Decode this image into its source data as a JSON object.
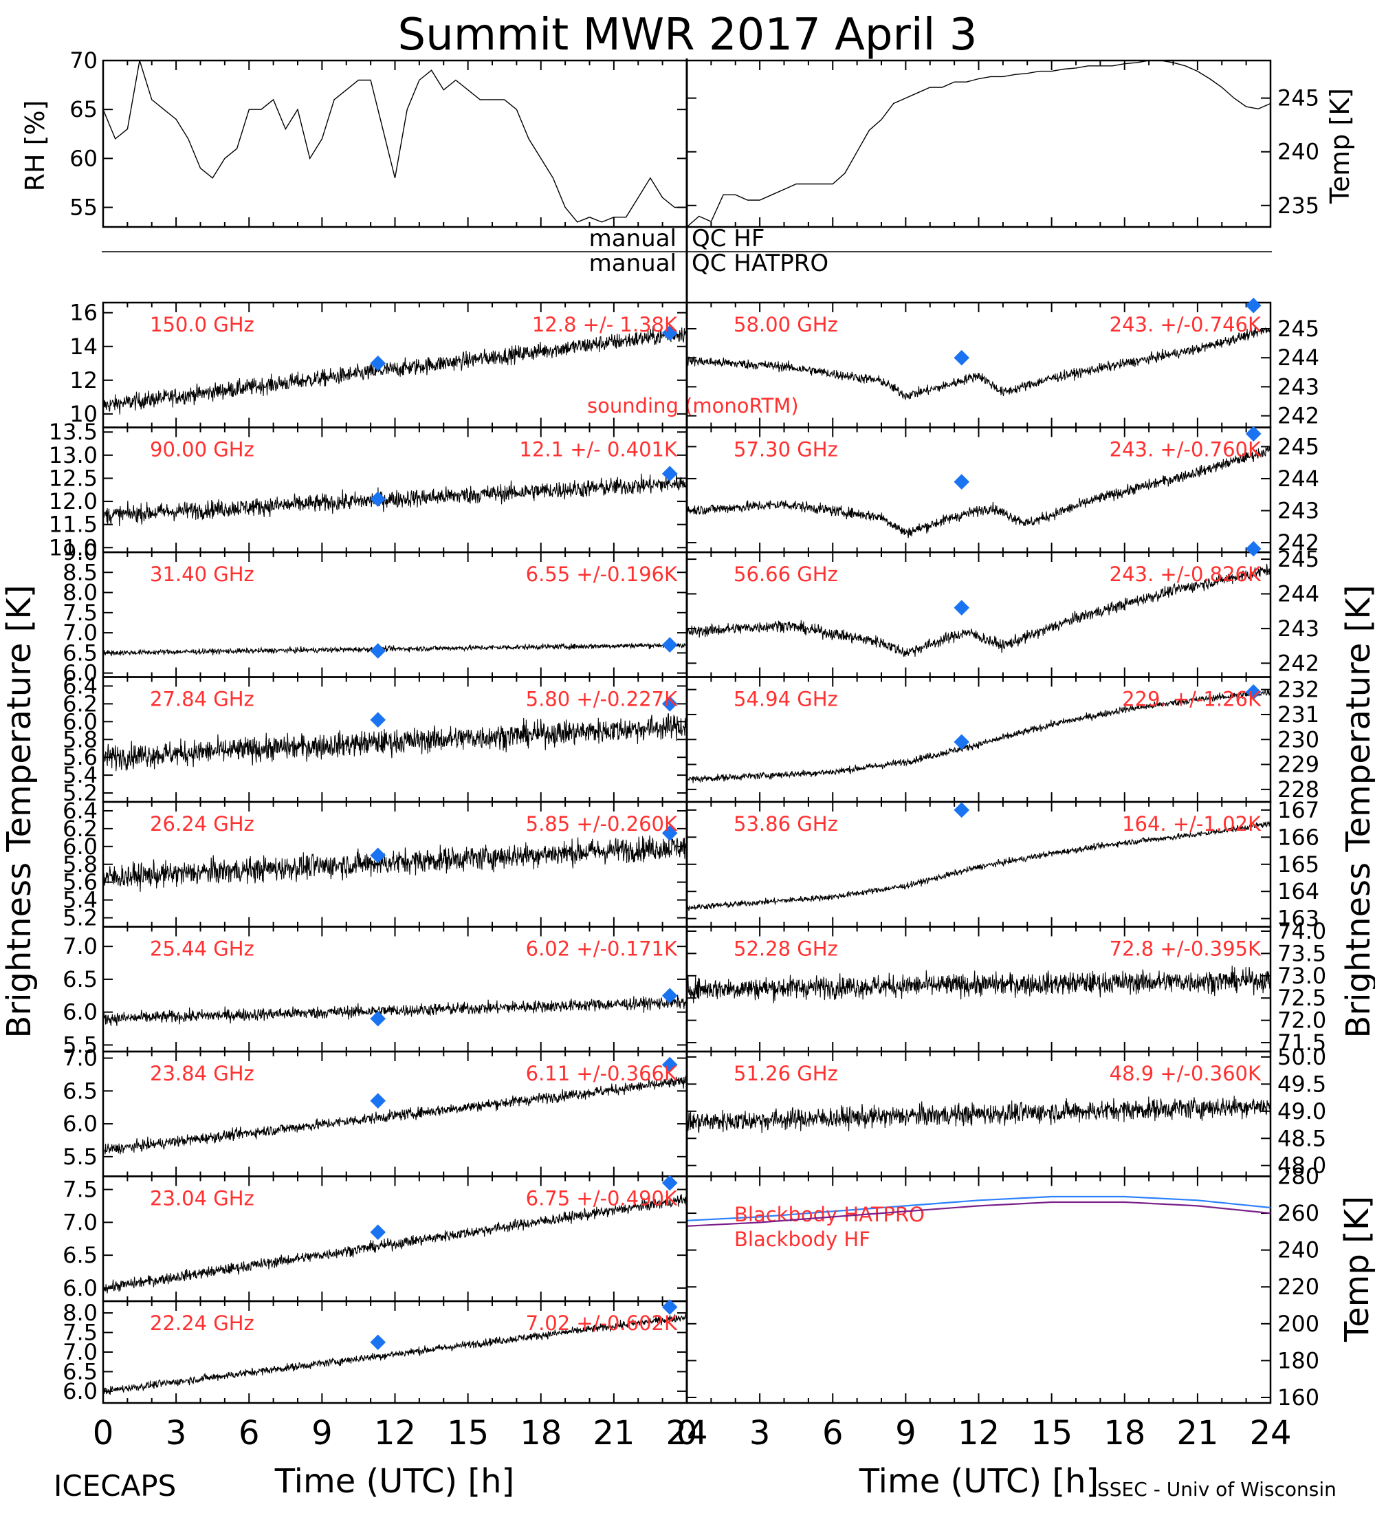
{
  "title": "Summit MWR 2017 April  3",
  "colors": {
    "marker": "#1a73f0",
    "channel_label": "#ff3030",
    "hatpro": "#2a80ff",
    "hf": "#7a1f8a",
    "trace": "#000000"
  },
  "qc": {
    "label_left": "manual",
    "label_hf": "QC HF",
    "label_hatpro": "QC HATPRO"
  },
  "left_axis_label": "Brightness Temperature [K]",
  "right_axis_label": "Brightness Temperature [K]",
  "x_axis": {
    "label": "Time (UTC) [h]",
    "ticks": [
      "0",
      "3",
      "6",
      "9",
      "12",
      "15",
      "18",
      "21",
      "24"
    ]
  },
  "footer": {
    "left": "ICECAPS",
    "right": "SSEC - Univ of Wisconsin"
  },
  "legend_sounding": "sounding (monoRTM)",
  "chart_data": [
    {
      "id": "rh",
      "type": "line",
      "ylabel": "RH [%]",
      "ylim": [
        53,
        70
      ],
      "yticks": [
        "55",
        "60",
        "65",
        "70"
      ],
      "x": [
        0,
        0.5,
        1,
        1.5,
        2,
        2.5,
        3,
        3.5,
        4,
        4.5,
        5,
        5.5,
        6,
        6.5,
        7,
        7.5,
        8,
        8.5,
        9,
        9.5,
        10,
        10.5,
        11,
        11.5,
        12,
        12.5,
        13,
        13.5,
        14,
        14.5,
        15,
        15.5,
        16,
        16.5,
        17,
        17.5,
        18,
        18.5,
        19,
        19.5,
        20,
        20.5,
        21,
        21.5,
        22,
        22.5,
        23,
        23.5,
        24
      ],
      "y": [
        65,
        62,
        63,
        70,
        66,
        65,
        64,
        62,
        59,
        58,
        60,
        61,
        65,
        65,
        66,
        63,
        65,
        60,
        62,
        66,
        67,
        68,
        68,
        63,
        58,
        65,
        68,
        69,
        67,
        68,
        67,
        66,
        66,
        66,
        65,
        62,
        60,
        58,
        55,
        53.5,
        54,
        53.5,
        54,
        54,
        56,
        58,
        56,
        55,
        55
      ]
    },
    {
      "id": "temp",
      "type": "line",
      "ylabel": "Temp [K]",
      "ylim": [
        233,
        248.5
      ],
      "yticks": [
        "235",
        "240",
        "245"
      ],
      "x": [
        0,
        0.5,
        1,
        1.5,
        2,
        2.5,
        3,
        3.5,
        4,
        4.5,
        5,
        5.5,
        6,
        6.5,
        7,
        7.5,
        8,
        8.5,
        9,
        9.5,
        10,
        10.5,
        11,
        11.5,
        12,
        12.5,
        13,
        13.5,
        14,
        14.5,
        15,
        15.5,
        16,
        16.5,
        17,
        17.5,
        18,
        18.5,
        19,
        19.5,
        20,
        20.5,
        21,
        21.5,
        22,
        22.5,
        23,
        23.5,
        24
      ],
      "y": [
        233,
        234,
        233.5,
        236,
        236,
        235.5,
        235.5,
        236,
        236.5,
        237,
        237,
        237,
        237,
        238,
        240,
        242,
        243,
        244.5,
        245,
        245.5,
        246,
        246,
        246.5,
        246.5,
        246.8,
        247,
        247,
        247.2,
        247.3,
        247.5,
        247.5,
        247.7,
        247.8,
        248,
        248,
        248,
        248.2,
        248.3,
        248.5,
        248.5,
        248.3,
        248,
        247.5,
        246.8,
        246,
        245,
        244.2,
        244,
        244.5
      ]
    },
    {
      "id": "hf150",
      "type": "scatter",
      "label": "150.0 GHz",
      "stats": "12.8 +/- 1.38K",
      "ylim": [
        9.2,
        16.6
      ],
      "yticks": [
        "10",
        "12",
        "14",
        "16"
      ],
      "start": 10.5,
      "end": 14.8,
      "noise": 0.9,
      "sounding_x": [
        11.3,
        23.3
      ],
      "sounding_y": [
        13.0,
        14.8
      ]
    },
    {
      "id": "hf90",
      "type": "scatter",
      "label": "90.00 GHz",
      "stats": "12.1 +/- 0.401K",
      "ylim": [
        10.9,
        13.6
      ],
      "yticks": [
        "11.0",
        "11.5",
        "12.0",
        "12.5",
        "13.0",
        "13.5"
      ],
      "start": 11.7,
      "end": 12.4,
      "noise": 0.35,
      "sounding_x": [
        11.3,
        23.3
      ],
      "sounding_y": [
        12.05,
        12.6
      ]
    },
    {
      "id": "k31",
      "type": "scatter",
      "label": "31.40 GHz",
      "stats": "6.55 +/-0.196K",
      "ylim": [
        5.9,
        9.0
      ],
      "yticks": [
        "6.0",
        "6.5",
        "7.0",
        "7.5",
        "8.0",
        "8.5",
        "9.0"
      ],
      "start": 6.5,
      "end": 6.7,
      "noise": 0.12,
      "sounding_x": [
        11.3,
        23.3
      ],
      "sounding_y": [
        6.55,
        6.7
      ]
    },
    {
      "id": "k2784",
      "type": "scatter",
      "label": "27.84 GHz",
      "stats": "5.80 +/-0.227K",
      "ylim": [
        5.1,
        6.5
      ],
      "yticks": [
        "5.2",
        "5.4",
        "5.6",
        "5.8",
        "6.0",
        "6.2",
        "6.4"
      ],
      "start": 5.6,
      "end": 5.95,
      "noise": 0.25,
      "sounding_x": [
        11.3,
        23.3
      ],
      "sounding_y": [
        6.02,
        6.2
      ]
    },
    {
      "id": "k2624",
      "type": "scatter",
      "label": "26.24 GHz",
      "stats": "5.85 +/-0.260K",
      "ylim": [
        5.1,
        6.5
      ],
      "yticks": [
        "5.2",
        "5.4",
        "5.6",
        "5.8",
        "6.0",
        "6.2",
        "6.4"
      ],
      "start": 5.65,
      "end": 6.0,
      "noise": 0.25,
      "sounding_x": [
        11.3,
        23.3
      ],
      "sounding_y": [
        5.9,
        6.15
      ]
    },
    {
      "id": "k2544",
      "type": "scatter",
      "label": "25.44 GHz",
      "stats": "6.02 +/-0.171K",
      "ylim": [
        5.4,
        7.3
      ],
      "yticks": [
        "5.5",
        "6.0",
        "6.5",
        "7.0"
      ],
      "start": 5.9,
      "end": 6.15,
      "noise": 0.17,
      "sounding_x": [
        11.3,
        23.3
      ],
      "sounding_y": [
        5.9,
        6.25
      ]
    },
    {
      "id": "k2384",
      "type": "scatter",
      "label": "23.84 GHz",
      "stats": "6.11 +/-0.366K",
      "ylim": [
        5.2,
        7.1
      ],
      "yticks": [
        "5.5",
        "6.0",
        "6.5",
        "7.0"
      ],
      "start": 5.6,
      "end": 6.65,
      "noise": 0.15,
      "sounding_x": [
        11.3,
        23.3
      ],
      "sounding_y": [
        6.35,
        6.9
      ]
    },
    {
      "id": "k2304",
      "type": "scatter",
      "label": "23.04 GHz",
      "stats": "6.75 +/-0.490K",
      "ylim": [
        5.8,
        7.7
      ],
      "yticks": [
        "6.0",
        "6.5",
        "7.0",
        "7.5"
      ],
      "start": 6.0,
      "end": 7.35,
      "noise": 0.15,
      "sounding_x": [
        11.3,
        23.3
      ],
      "sounding_y": [
        6.85,
        7.6
      ]
    },
    {
      "id": "k2224",
      "type": "scatter",
      "label": "22.24 GHz",
      "stats": "7.02 +/-0.602K",
      "ylim": [
        5.7,
        8.3
      ],
      "yticks": [
        "6.0",
        "6.5",
        "7.0",
        "7.5",
        "8.0"
      ],
      "start": 6.0,
      "end": 7.9,
      "noise": 0.18,
      "sounding_x": [
        11.3,
        23.3
      ],
      "sounding_y": [
        7.25,
        8.15
      ]
    },
    {
      "id": "v5800",
      "type": "scatter",
      "label": "58.00 GHz",
      "stats": "243. +/-0.746K",
      "ylim": [
        241.6,
        245.9
      ],
      "yticks": [
        "242",
        "243",
        "244",
        "245"
      ],
      "profile": [
        [
          0,
          243.9
        ],
        [
          4,
          243.7
        ],
        [
          8,
          243.2
        ],
        [
          9,
          242.7
        ],
        [
          10.5,
          243.0
        ],
        [
          12,
          243.4
        ],
        [
          13,
          242.8
        ],
        [
          15,
          243.3
        ],
        [
          18,
          243.8
        ],
        [
          21,
          244.3
        ],
        [
          24,
          245.0
        ]
      ],
      "noise": 0.3,
      "sounding_x": [
        11.3,
        23.3
      ],
      "sounding_y": [
        244.0,
        245.8
      ]
    },
    {
      "id": "v5730",
      "type": "scatter",
      "label": "57.30 GHz",
      "stats": "243. +/-0.760K",
      "ylim": [
        241.7,
        245.6
      ],
      "yticks": [
        "242",
        "243",
        "244",
        "245"
      ],
      "profile": [
        [
          0,
          243.0
        ],
        [
          4,
          243.2
        ],
        [
          8,
          242.8
        ],
        [
          9,
          242.3
        ],
        [
          11,
          242.8
        ],
        [
          12.5,
          243.1
        ],
        [
          14,
          242.6
        ],
        [
          17,
          243.4
        ],
        [
          21,
          244.2
        ],
        [
          24,
          244.9
        ]
      ],
      "noise": 0.3,
      "sounding_x": [
        11.3,
        23.3
      ],
      "sounding_y": [
        243.9,
        245.4
      ]
    },
    {
      "id": "v5666",
      "type": "scatter",
      "label": "56.66 GHz",
      "stats": "243. +/-0.826K",
      "ylim": [
        241.6,
        245.2
      ],
      "yticks": [
        "242",
        "243",
        "244",
        "245"
      ],
      "profile": [
        [
          0,
          242.9
        ],
        [
          4,
          243.1
        ],
        [
          8,
          242.6
        ],
        [
          9,
          242.3
        ],
        [
          11.5,
          242.9
        ],
        [
          13,
          242.5
        ],
        [
          16,
          243.3
        ],
        [
          20,
          244.1
        ],
        [
          24,
          244.7
        ]
      ],
      "noise": 0.3,
      "sounding_x": [
        11.3,
        23.3
      ],
      "sounding_y": [
        243.6,
        245.3
      ]
    },
    {
      "id": "v5494",
      "type": "scatter",
      "label": "54.94 GHz",
      "stats": "229. +/-1.26K",
      "ylim": [
        227.5,
        232.5
      ],
      "yticks": [
        "228",
        "229",
        "230",
        "231",
        "232"
      ],
      "profile": [
        [
          0,
          228.4
        ],
        [
          6,
          228.7
        ],
        [
          9,
          229.1
        ],
        [
          12,
          229.8
        ],
        [
          15,
          230.6
        ],
        [
          18,
          231.2
        ],
        [
          21,
          231.6
        ],
        [
          24,
          231.9
        ]
      ],
      "noise": 0.25,
      "sounding_x": [
        11.3,
        23.3
      ],
      "sounding_y": [
        229.9,
        231.9
      ]
    },
    {
      "id": "v5386",
      "type": "scatter",
      "label": "53.86 GHz",
      "stats": "164. +/-1.02K",
      "ylim": [
        162.7,
        167.3
      ],
      "yticks": [
        "163",
        "164",
        "165",
        "166",
        "167"
      ],
      "profile": [
        [
          0,
          163.4
        ],
        [
          6,
          163.8
        ],
        [
          9,
          164.2
        ],
        [
          12,
          164.9
        ],
        [
          15,
          165.4
        ],
        [
          18,
          165.8
        ],
        [
          21,
          166.1
        ],
        [
          24,
          166.5
        ]
      ],
      "noise": 0.2,
      "sounding_x": [
        11.3
      ],
      "sounding_y": [
        167.0
      ]
    },
    {
      "id": "v5228",
      "type": "scatter",
      "label": "52.28 GHz",
      "stats": "72.8 +/-0.395K",
      "ylim": [
        71.3,
        74.1
      ],
      "yticks": [
        "71.5",
        "72.0",
        "72.5",
        "73.0",
        "73.5",
        "74.0"
      ],
      "start": 72.7,
      "end": 72.9,
      "noise": 0.45,
      "sounding_x": [],
      "sounding_y": []
    },
    {
      "id": "v5126",
      "type": "scatter",
      "label": "51.26 GHz",
      "stats": "48.9 +/-0.360K",
      "ylim": [
        47.8,
        50.1
      ],
      "yticks": [
        "48.0",
        "48.5",
        "49.0",
        "49.5",
        "50.0"
      ],
      "start": 48.8,
      "end": 49.1,
      "noise": 0.35,
      "sounding_x": [],
      "sounding_y": []
    },
    {
      "id": "bb",
      "type": "line",
      "ylabel": "Temp [K]",
      "ylim": [
        157,
        280
      ],
      "yticks": [
        "160",
        "180",
        "200",
        "220",
        "240",
        "260",
        "280"
      ],
      "series": [
        {
          "name": "Blackbody HATPRO",
          "x": [
            0,
            3,
            6,
            9,
            12,
            15,
            18,
            21,
            24
          ],
          "y": [
            256,
            258,
            261,
            264,
            267,
            269,
            269,
            267,
            263
          ]
        },
        {
          "name": "Blackbody HF",
          "x": [
            0,
            3,
            6,
            9,
            12,
            15,
            18,
            21,
            24
          ],
          "y": [
            253,
            255,
            258,
            261,
            264,
            266,
            266,
            264,
            260
          ]
        }
      ]
    }
  ]
}
